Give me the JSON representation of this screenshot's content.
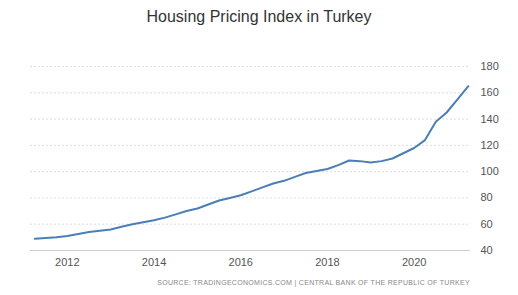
{
  "chart_data": {
    "type": "line",
    "title": "Housing Pricing Index in Turkey",
    "source": "SOURCE: TRADINGECONOMICS.COM | CENTRAL BANK OF THE REPUBLIC OF TURKEY",
    "x": [
      2011.25,
      2011.5,
      2011.75,
      2012.0,
      2012.25,
      2012.5,
      2012.75,
      2013.0,
      2013.25,
      2013.5,
      2013.75,
      2014.0,
      2014.25,
      2014.5,
      2014.75,
      2015.0,
      2015.25,
      2015.5,
      2015.75,
      2016.0,
      2016.25,
      2016.5,
      2016.75,
      2017.0,
      2017.25,
      2017.5,
      2017.75,
      2018.0,
      2018.25,
      2018.5,
      2018.75,
      2019.0,
      2019.25,
      2019.5,
      2019.75,
      2020.0,
      2020.25,
      2020.5,
      2020.75,
      2021.0,
      2021.25
    ],
    "values": [
      49,
      49.5,
      50,
      51,
      52.5,
      54,
      55,
      56,
      58,
      60,
      61.5,
      63,
      65,
      67.5,
      70,
      72,
      75,
      78,
      80,
      82,
      85,
      88,
      91,
      93,
      96,
      99,
      100.5,
      102,
      105,
      108.5,
      108,
      107,
      108,
      110,
      114,
      118,
      124,
      138,
      145,
      155,
      165
    ],
    "color": "#4a7fb5",
    "xlim": [
      2011.15,
      2021.3
    ],
    "xticks": [
      2012,
      2014,
      2016,
      2018,
      2020
    ],
    "ylim": [
      40,
      180
    ],
    "yticks": [
      40,
      60,
      80,
      100,
      120,
      140,
      160,
      180
    ],
    "grid": true
  }
}
